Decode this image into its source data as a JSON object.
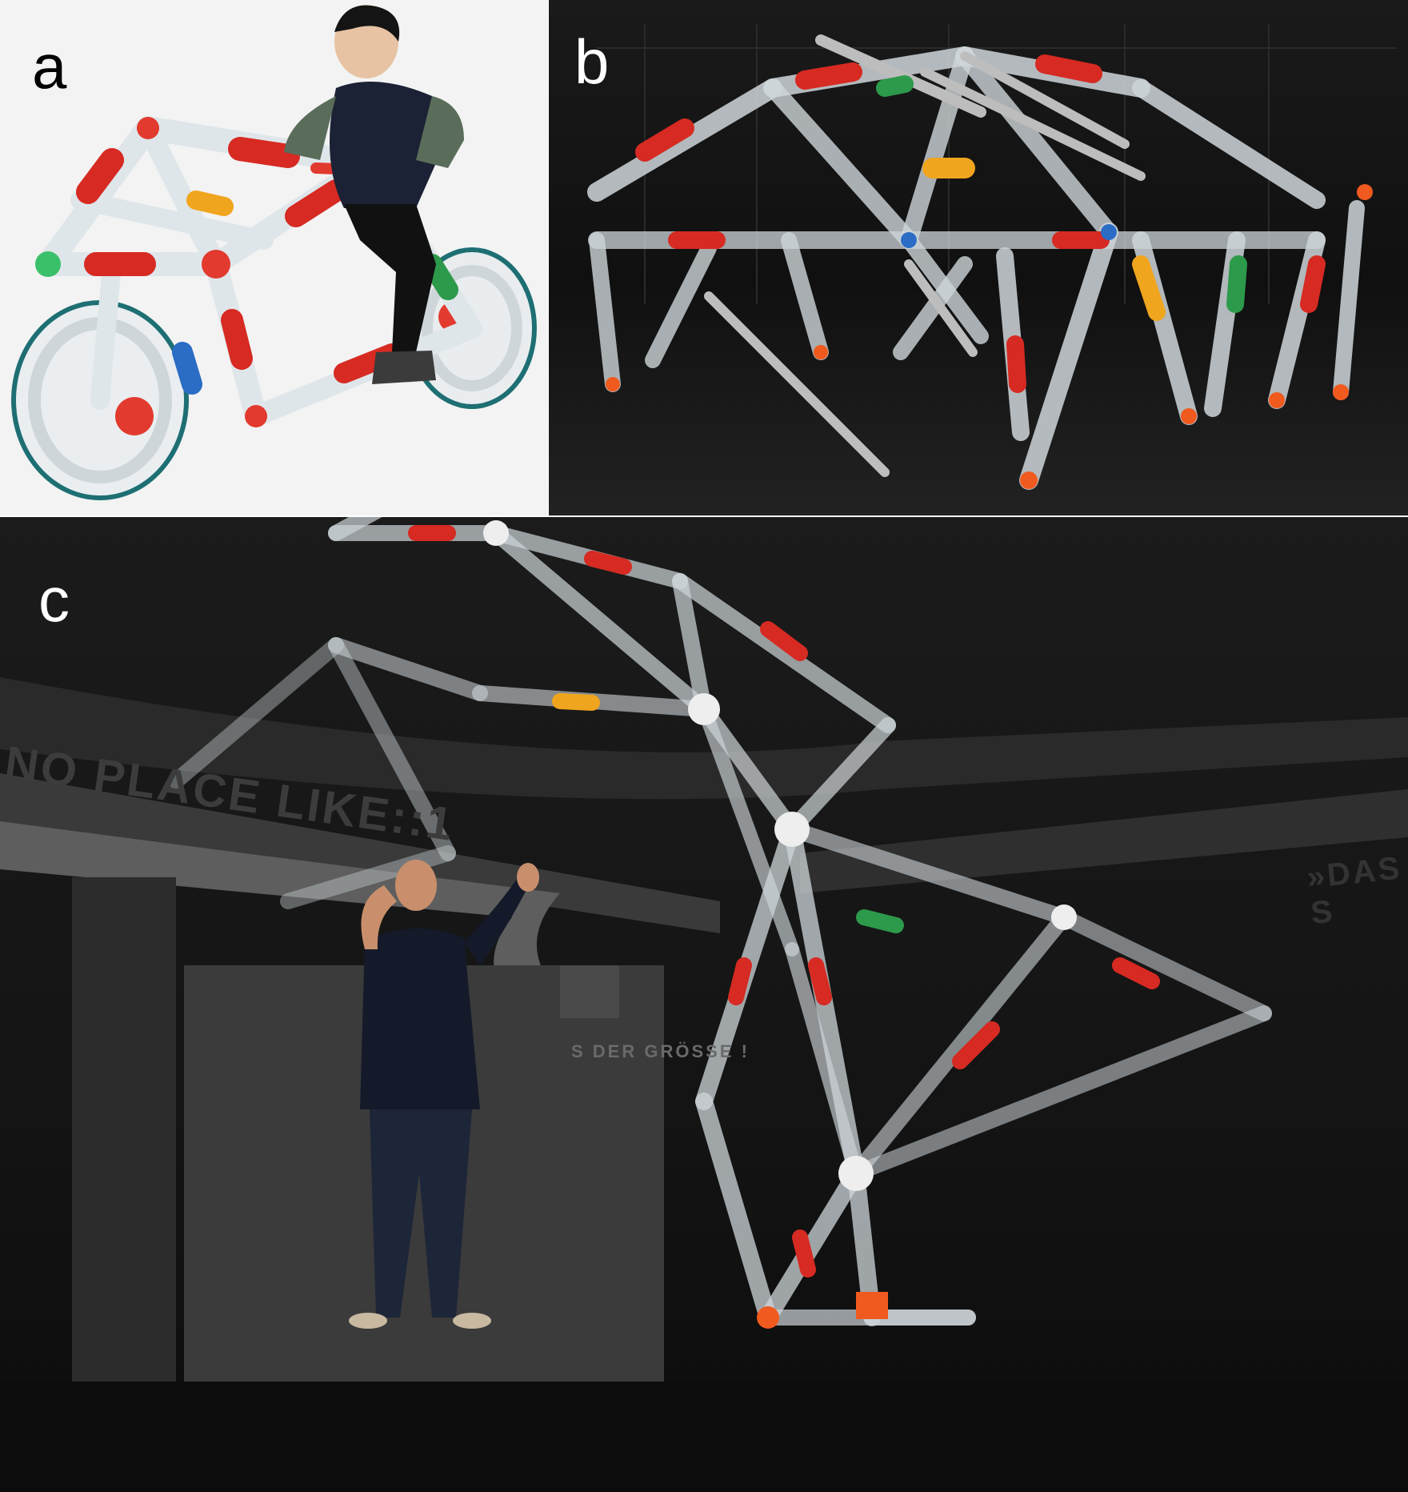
{
  "figure": {
    "panels": [
      {
        "id": "a",
        "label": "a"
      },
      {
        "id": "b",
        "label": "b"
      },
      {
        "id": "c",
        "label": "c"
      }
    ]
  },
  "panel_c": {
    "wall_text_left": "NO PLACE LIKE::1",
    "wall_text_right": "»DAS S",
    "wall_text_center": "S DER GRÖSSE !"
  },
  "colors": {
    "bottle_red": "#d62a22",
    "bottle_clear": "#dfe6ea",
    "connector_orange": "#f05a1e",
    "actuator_grey": "#bdbdbd"
  }
}
